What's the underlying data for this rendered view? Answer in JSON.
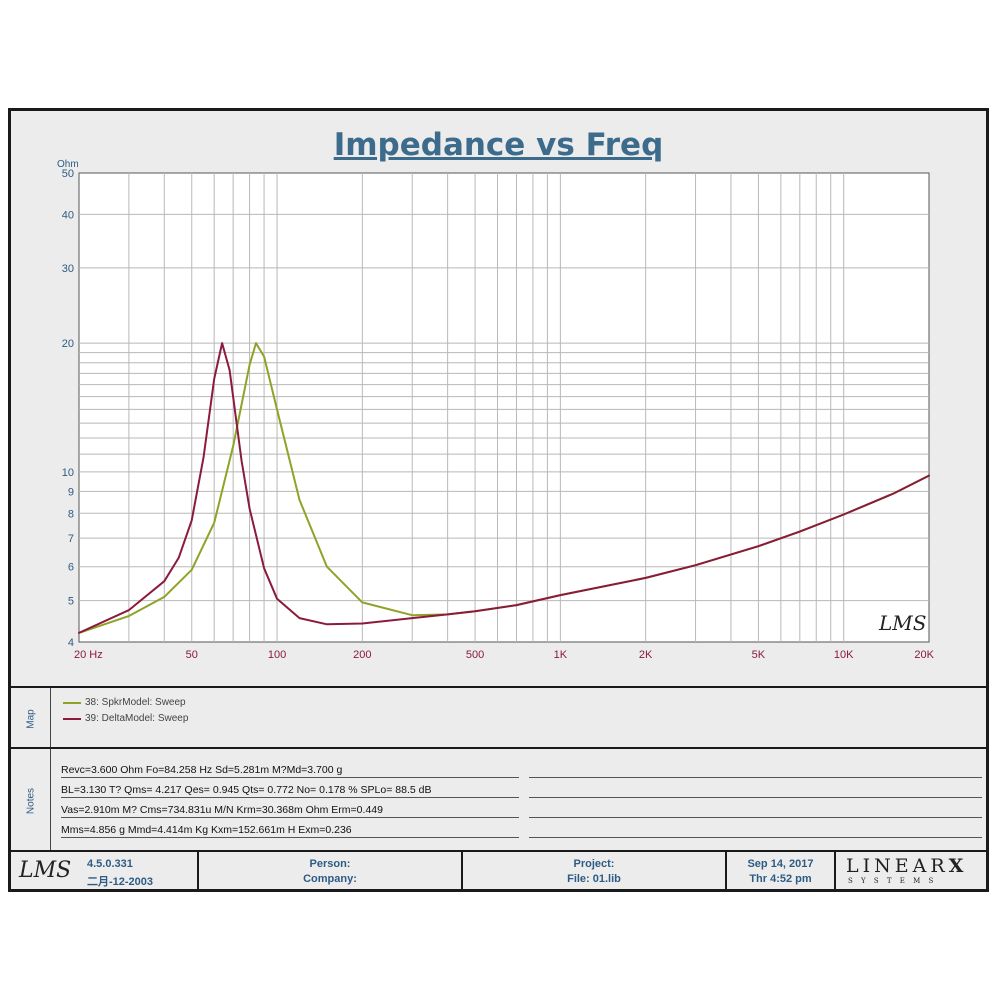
{
  "title": "Impedance vs Freq",
  "colors": {
    "frame_bg": "#ececec",
    "plot_bg": "#ffffff",
    "grid": "#b8b8b8",
    "axis_text": "#2d5b84",
    "xaxis_text": "#8a1b3a",
    "title": "#3d6b8c",
    "series1": "#8ea327",
    "series2": "#8a1b3a"
  },
  "chart_data": {
    "type": "line",
    "title": "Impedance vs Freq",
    "xlabel": "",
    "ylabel": "Ohm",
    "x_scale": "log",
    "y_scale": "log",
    "xlim": [
      20,
      20000
    ],
    "ylim": [
      4,
      50
    ],
    "grid": true,
    "x_ticks": [
      20,
      50,
      100,
      200,
      500,
      1000,
      2000,
      5000,
      10000,
      20000
    ],
    "x_tick_labels": [
      "20  Hz",
      "50",
      "100",
      "200",
      "500",
      "1K",
      "2K",
      "5K",
      "10K",
      "20K"
    ],
    "y_ticks": [
      4,
      5,
      6,
      7,
      8,
      9,
      10,
      20,
      30,
      40,
      50
    ],
    "y_tick_labels": [
      "4",
      "5",
      "6",
      "7",
      "8",
      "9",
      "10",
      "20",
      "30",
      "40",
      "50"
    ],
    "series": [
      {
        "name": "38: SpkrModel: Sweep",
        "color": "#8ea327",
        "x": [
          20,
          30,
          40,
          50,
          60,
          70,
          80,
          84.3,
          90,
          100,
          120,
          150,
          200,
          300,
          400,
          500,
          700,
          1000,
          2000,
          3000,
          5000,
          7000,
          10000,
          15000,
          20000
        ],
        "y": [
          4.2,
          4.6,
          5.1,
          5.9,
          7.6,
          11.5,
          17.8,
          20.0,
          18.6,
          14.0,
          8.6,
          6.0,
          4.95,
          4.62,
          4.64,
          4.72,
          4.88,
          5.15,
          5.65,
          6.05,
          6.7,
          7.25,
          7.95,
          8.9,
          9.8
        ]
      },
      {
        "name": "39: DeltaModel: Sweep",
        "color": "#8a1b3a",
        "x": [
          20,
          30,
          40,
          45,
          50,
          55,
          60,
          64,
          68,
          75,
          80,
          90,
          100,
          120,
          150,
          200,
          300,
          400,
          500,
          700,
          1000,
          2000,
          3000,
          5000,
          7000,
          10000,
          15000,
          20000
        ],
        "y": [
          4.2,
          4.75,
          5.55,
          6.3,
          7.7,
          10.8,
          16.5,
          20.0,
          17.3,
          10.6,
          8.2,
          5.95,
          5.05,
          4.55,
          4.4,
          4.42,
          4.55,
          4.64,
          4.72,
          4.88,
          5.15,
          5.65,
          6.05,
          6.7,
          7.25,
          7.95,
          8.9,
          9.8
        ]
      }
    ],
    "annotations": [
      "LMS"
    ]
  },
  "legend": {
    "side_label": "Map",
    "items": [
      {
        "label": "38: SpkrModel: Sweep",
        "color": "#8ea327"
      },
      {
        "label": "39: DeltaModel: Sweep",
        "color": "#8a1b3a"
      }
    ]
  },
  "notes": {
    "side_label": "Notes",
    "lines": [
      "Revc=3.600 Ohm  Fo=84.258 Hz  Sd=5.281m M?Md=3.700 g",
      "BL=3.130 T?  Qms= 4.217  Qes= 0.945  Qts= 0.772  No= 0.178 %  SPLo= 88.5 dB",
      "Vas=2.910m M? Cms=734.831u M/N  Krm=30.368m Ohm  Erm=0.449",
      "Mms=4.856 g  Mmd=4.414m Kg  Kxm=152.661m H  Exm=0.236"
    ]
  },
  "footer": {
    "logo": "LMS",
    "version": "4.5.0.331",
    "build_date": "二月-12-2003",
    "person_label": "Person:",
    "company_label": "Company:",
    "project_label": "Project:",
    "file_label": "File: 01.lib",
    "date": "Sep 14, 2017",
    "time": "Thr  4:52 pm",
    "brand": "LINEAR",
    "brand_x": "X",
    "brand_sub": "S Y S T E M S"
  },
  "plot_watermark": "LMS"
}
